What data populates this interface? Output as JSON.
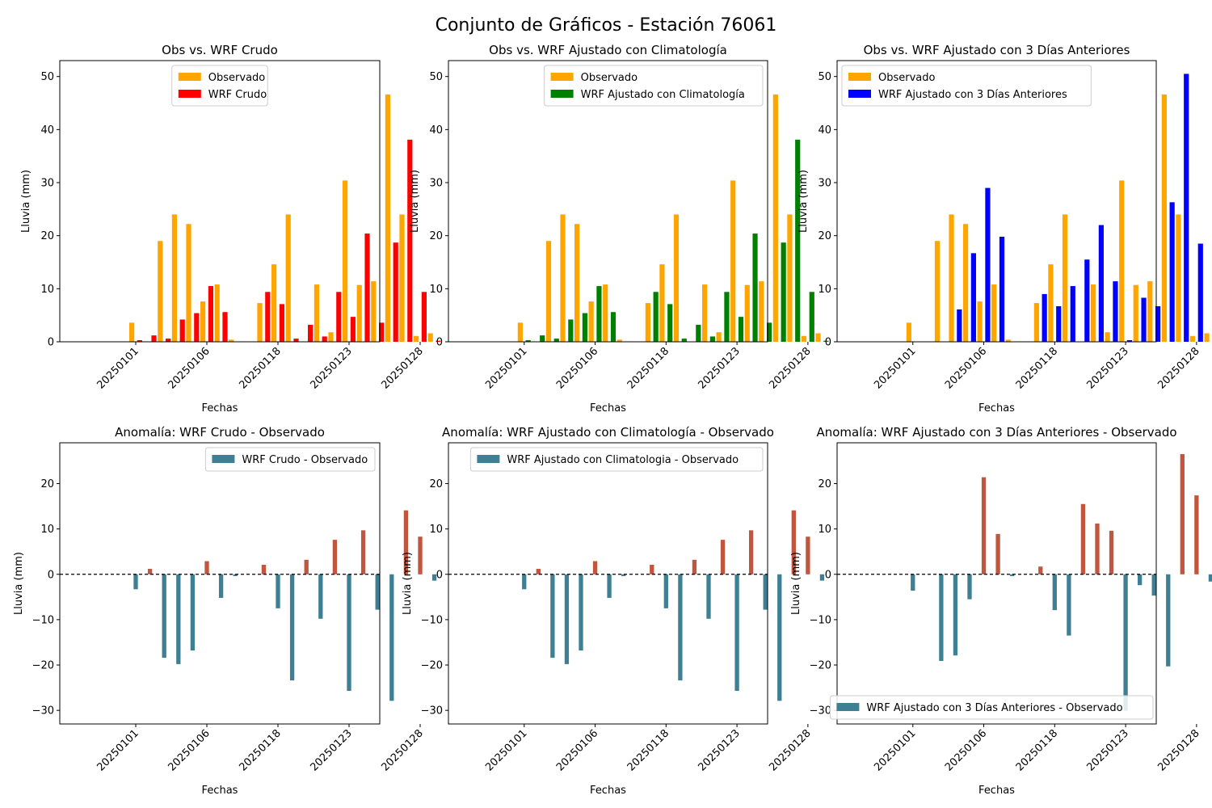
{
  "figure": {
    "title": "Conjunto de Gráficos - Estación 76061",
    "colors": {
      "observado": "#ffa500",
      "crudo": "#ff0000",
      "clima": "#008000",
      "tres_dias": "#0000ff",
      "anom_neg": "#3f7f93",
      "anom_pos": "#c1553d",
      "baseline": "#000000"
    }
  },
  "chart_data": [
    {
      "type": "bar",
      "title": "Obs vs. WRF Crudo",
      "xlabel": "Fechas",
      "ylabel": "Lluvia (mm)",
      "ylim": [
        0,
        53
      ],
      "yticks": [
        0,
        10,
        20,
        30,
        40,
        50
      ],
      "xticks": [
        "20250101",
        "20250106",
        "20250118",
        "20250123",
        "20250128"
      ],
      "legend": "top-center",
      "series": [
        {
          "name": "Observado",
          "color": "observado",
          "values": [
            3.6,
            0,
            19,
            24,
            22.2,
            7.6,
            10.8,
            0.4,
            0,
            7.3,
            14.6,
            24,
            0,
            10.8,
            1.8,
            30.4,
            10.7,
            11.4,
            46.6,
            24,
            1.1,
            1.6
          ]
        },
        {
          "name": "WRF Crudo",
          "color": "crudo",
          "values": [
            0.3,
            1.2,
            0.6,
            4.2,
            5.4,
            10.5,
            5.6,
            0,
            0,
            9.4,
            7.1,
            0.6,
            3.2,
            1,
            9.4,
            4.7,
            20.4,
            3.6,
            18.7,
            38.1,
            9.4,
            0.2
          ]
        }
      ]
    },
    {
      "type": "bar",
      "title": "Obs vs. WRF Ajustado con Climatología",
      "xlabel": "Fechas",
      "ylabel": "Lluvia (mm)",
      "ylim": [
        0,
        53
      ],
      "yticks": [
        0,
        10,
        20,
        30,
        40,
        50
      ],
      "xticks": [
        "20250101",
        "20250106",
        "20250118",
        "20250123",
        "20250128"
      ],
      "legend": "top-right",
      "series": [
        {
          "name": "Observado",
          "color": "observado",
          "values": [
            3.6,
            0,
            19,
            24,
            22.2,
            7.6,
            10.8,
            0.4,
            0,
            7.3,
            14.6,
            24,
            0,
            10.8,
            1.8,
            30.4,
            10.7,
            11.4,
            46.6,
            24,
            1.1,
            1.6
          ]
        },
        {
          "name": "WRF Ajustado con Climatología",
          "color": "clima",
          "values": [
            0.3,
            1.2,
            0.6,
            4.2,
            5.4,
            10.5,
            5.6,
            0,
            0,
            9.4,
            7.1,
            0.6,
            3.2,
            1,
            9.4,
            4.7,
            20.4,
            3.6,
            18.7,
            38.1,
            9.4,
            0.2
          ]
        }
      ]
    },
    {
      "type": "bar",
      "title": "Obs vs. WRF Ajustado con 3 Días Anteriores",
      "xlabel": "Fechas",
      "ylabel": "Lluvia (mm)",
      "ylim": [
        0,
        53
      ],
      "yticks": [
        0,
        10,
        20,
        30,
        40,
        50
      ],
      "xticks": [
        "20250101",
        "20250106",
        "20250118",
        "20250123",
        "20250128"
      ],
      "legend": "top-left",
      "series": [
        {
          "name": "Observado",
          "color": "observado",
          "values": [
            3.6,
            0,
            19,
            24,
            22.2,
            7.6,
            10.8,
            0.4,
            0,
            7.3,
            14.6,
            24,
            0,
            10.8,
            1.8,
            30.4,
            10.7,
            11.4,
            46.6,
            24,
            1.1,
            1.6
          ]
        },
        {
          "name": "WRF Ajustado con 3 Días Anteriores",
          "color": "tres_dias",
          "values": [
            0,
            0,
            0,
            6.1,
            16.7,
            29,
            19.8,
            0,
            0,
            9,
            6.7,
            10.5,
            15.5,
            22,
            11.4,
            0.3,
            8.3,
            6.7,
            26.3,
            50.5,
            18.5,
            0
          ]
        }
      ]
    },
    {
      "type": "bar",
      "title": "Anomalía: WRF Crudo - Observado",
      "xlabel": "Fechas",
      "ylabel": "Lluvia (mm)",
      "ylim": [
        -33,
        29
      ],
      "yticks": [
        -30,
        -20,
        -10,
        0,
        10,
        20
      ],
      "xticks": [
        "20250101",
        "20250106",
        "20250118",
        "20250123",
        "20250128"
      ],
      "legend": "top-right",
      "series": [
        {
          "name": "WRF Crudo - Observado",
          "color": "anom_neg",
          "values": [
            -3.3,
            1.2,
            -18.4,
            -19.8,
            -16.8,
            2.9,
            -5.2,
            -0.4,
            0,
            2.1,
            -7.5,
            -23.4,
            3.2,
            -9.8,
            7.6,
            -25.7,
            9.7,
            -7.8,
            -27.9,
            14.1,
            8.3,
            -1.4
          ]
        }
      ]
    },
    {
      "type": "bar",
      "title": "Anomalía: WRF Ajustado con Climatología - Observado",
      "xlabel": "Fechas",
      "ylabel": "Lluvia (mm)",
      "ylim": [
        -33,
        29
      ],
      "yticks": [
        -30,
        -20,
        -10,
        0,
        10,
        20
      ],
      "xticks": [
        "20250101",
        "20250106",
        "20250118",
        "20250123",
        "20250128"
      ],
      "legend": "top-right",
      "series": [
        {
          "name": "WRF Ajustado con Climatologia - Observado",
          "color": "anom_neg",
          "values": [
            -3.3,
            1.2,
            -18.4,
            -19.8,
            -16.8,
            2.9,
            -5.2,
            -0.4,
            0,
            2.1,
            -7.5,
            -23.4,
            3.2,
            -9.8,
            7.6,
            -25.7,
            9.7,
            -7.8,
            -27.9,
            14.1,
            8.3,
            -1.4
          ]
        }
      ]
    },
    {
      "type": "bar",
      "title": "Anomalía: WRF Ajustado con 3 Días Anteriores - Observado",
      "xlabel": "Fechas",
      "ylabel": "Lluvia (mm)",
      "ylim": [
        -33,
        29
      ],
      "yticks": [
        -30,
        -20,
        -10,
        0,
        10,
        20
      ],
      "xticks": [
        "20250101",
        "20250106",
        "20250118",
        "20250123",
        "20250128"
      ],
      "legend": "bottom-right",
      "series": [
        {
          "name": "WRF Ajustado con 3 Días Anteriores - Observado",
          "color": "anom_neg",
          "values": [
            -3.6,
            0,
            -19.1,
            -17.9,
            -5.5,
            21.4,
            8.9,
            -0.4,
            0,
            1.7,
            -7.9,
            -13.5,
            15.5,
            11.2,
            9.6,
            -30.1,
            -2.4,
            -4.7,
            -20.3,
            26.5,
            17.4,
            -1.6
          ]
        }
      ]
    }
  ]
}
